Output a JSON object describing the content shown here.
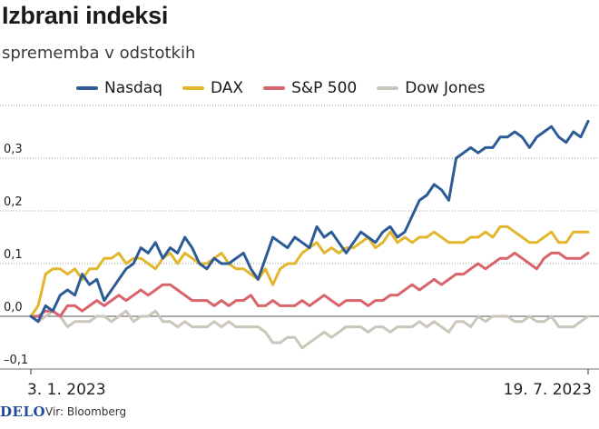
{
  "title": "Izbrani indeksi",
  "subtitle": "sprememba v odstotkih",
  "footer": {
    "logo": "DELO",
    "source": "Vir: Bloomberg"
  },
  "colors": {
    "nasdaq": "#2c5b96",
    "dax": "#e3b62e",
    "sp500": "#d9646b",
    "dowjones": "#cbc6ba",
    "grid": "#9a9a9a",
    "zero": "#555555"
  },
  "chart_data": {
    "type": "line",
    "x_labels": [
      "3. 1. 2023",
      "19. 7. 2023"
    ],
    "yticks": [
      -0.1,
      0.0,
      0.1,
      0.2,
      0.3
    ],
    "ytick_labels": [
      "–0,1",
      "0,0",
      "0,1",
      "0,2",
      "0,3"
    ],
    "ylim": [
      -0.1,
      0.4
    ],
    "legend_position": "top",
    "grid": true,
    "series": [
      {
        "name": "Nasdaq",
        "color": "#2c5b96",
        "values": [
          0.0,
          -0.01,
          0.02,
          0.01,
          0.04,
          0.05,
          0.04,
          0.08,
          0.06,
          0.07,
          0.03,
          0.05,
          0.07,
          0.09,
          0.1,
          0.13,
          0.12,
          0.14,
          0.11,
          0.13,
          0.12,
          0.15,
          0.13,
          0.1,
          0.09,
          0.11,
          0.1,
          0.1,
          0.11,
          0.12,
          0.09,
          0.07,
          0.11,
          0.15,
          0.14,
          0.13,
          0.15,
          0.14,
          0.13,
          0.17,
          0.15,
          0.16,
          0.14,
          0.12,
          0.14,
          0.16,
          0.15,
          0.14,
          0.16,
          0.17,
          0.15,
          0.16,
          0.19,
          0.22,
          0.23,
          0.25,
          0.24,
          0.22,
          0.3,
          0.31,
          0.32,
          0.31,
          0.32,
          0.32,
          0.34,
          0.34,
          0.35,
          0.34,
          0.32,
          0.34,
          0.35,
          0.36,
          0.34,
          0.33,
          0.35,
          0.34,
          0.37
        ]
      },
      {
        "name": "DAX",
        "color": "#e3b62e",
        "values": [
          0.0,
          0.02,
          0.08,
          0.09,
          0.09,
          0.08,
          0.09,
          0.07,
          0.09,
          0.09,
          0.11,
          0.11,
          0.12,
          0.1,
          0.11,
          0.11,
          0.1,
          0.09,
          0.11,
          0.12,
          0.1,
          0.12,
          0.11,
          0.1,
          0.1,
          0.11,
          0.12,
          0.1,
          0.09,
          0.09,
          0.08,
          0.07,
          0.09,
          0.06,
          0.09,
          0.1,
          0.1,
          0.12,
          0.13,
          0.14,
          0.12,
          0.13,
          0.12,
          0.13,
          0.13,
          0.14,
          0.15,
          0.13,
          0.14,
          0.16,
          0.14,
          0.15,
          0.14,
          0.15,
          0.15,
          0.16,
          0.15,
          0.14,
          0.14,
          0.14,
          0.15,
          0.15,
          0.16,
          0.15,
          0.17,
          0.17,
          0.16,
          0.15,
          0.14,
          0.14,
          0.15,
          0.16,
          0.14,
          0.14,
          0.16,
          0.16,
          0.16
        ]
      },
      {
        "name": "S&P 500",
        "color": "#d9646b",
        "values": [
          0.0,
          0.0,
          0.01,
          0.01,
          0.0,
          0.02,
          0.02,
          0.01,
          0.02,
          0.03,
          0.02,
          0.03,
          0.04,
          0.03,
          0.04,
          0.05,
          0.04,
          0.05,
          0.06,
          0.06,
          0.05,
          0.04,
          0.03,
          0.03,
          0.03,
          0.02,
          0.03,
          0.02,
          0.03,
          0.03,
          0.04,
          0.02,
          0.02,
          0.03,
          0.02,
          0.02,
          0.02,
          0.03,
          0.02,
          0.03,
          0.04,
          0.03,
          0.02,
          0.03,
          0.03,
          0.03,
          0.02,
          0.03,
          0.03,
          0.04,
          0.04,
          0.05,
          0.06,
          0.05,
          0.06,
          0.07,
          0.06,
          0.07,
          0.08,
          0.08,
          0.09,
          0.1,
          0.09,
          0.1,
          0.11,
          0.11,
          0.12,
          0.11,
          0.1,
          0.09,
          0.11,
          0.12,
          0.12,
          0.11,
          0.11,
          0.11,
          0.12
        ]
      },
      {
        "name": "Dow Jones",
        "color": "#cbc6ba",
        "values": [
          0.0,
          -0.01,
          0.0,
          0.01,
          0.0,
          -0.02,
          -0.01,
          -0.01,
          -0.01,
          0.0,
          0.0,
          -0.01,
          0.0,
          0.01,
          -0.01,
          0.0,
          0.0,
          0.01,
          -0.01,
          -0.01,
          -0.02,
          -0.01,
          -0.02,
          -0.02,
          -0.02,
          -0.01,
          -0.02,
          -0.01,
          -0.02,
          -0.02,
          -0.02,
          -0.02,
          -0.03,
          -0.05,
          -0.05,
          -0.04,
          -0.04,
          -0.06,
          -0.05,
          -0.04,
          -0.03,
          -0.04,
          -0.03,
          -0.02,
          -0.02,
          -0.02,
          -0.03,
          -0.02,
          -0.02,
          -0.03,
          -0.02,
          -0.02,
          -0.02,
          -0.01,
          -0.02,
          -0.01,
          -0.02,
          -0.03,
          -0.01,
          -0.01,
          -0.02,
          0.0,
          -0.01,
          0.0,
          0.0,
          0.0,
          -0.01,
          -0.01,
          0.0,
          -0.01,
          -0.01,
          0.0,
          -0.02,
          -0.02,
          -0.02,
          -0.01,
          0.0
        ]
      }
    ]
  }
}
